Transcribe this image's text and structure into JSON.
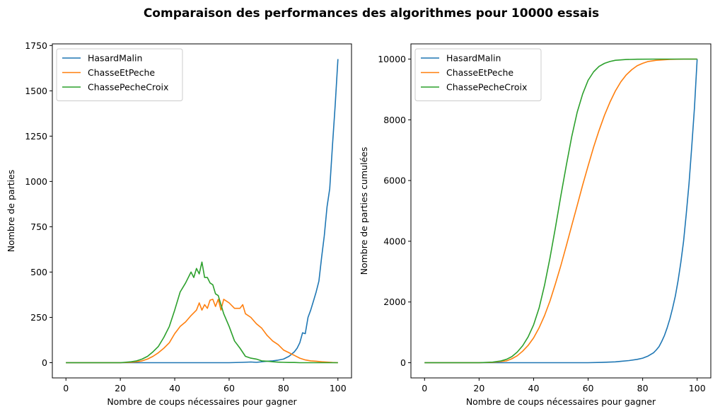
{
  "figure": {
    "title": "Comparaison des performances des algorithmes pour 10000 essais"
  },
  "colors": {
    "HasardMalin": "#1f77b4",
    "ChasseEtPeche": "#ff7f0e",
    "ChassePecheCroix": "#2ca02c"
  },
  "chart_data": [
    {
      "type": "line",
      "title": "",
      "xlabel": "Nombre de coups nécessaires pour gagner",
      "ylabel": "Nombre de parties",
      "xlim": [
        -5,
        105
      ],
      "ylim": [
        -84,
        1759
      ],
      "xticks": [
        0,
        20,
        40,
        60,
        80,
        100
      ],
      "yticks": [
        0,
        250,
        500,
        750,
        1000,
        1250,
        1500,
        1750
      ],
      "legend": "top-left",
      "grid": false,
      "series": [
        {
          "name": "HasardMalin",
          "x": [
            0,
            10,
            20,
            30,
            40,
            50,
            60,
            65,
            68,
            70,
            72,
            74,
            76,
            78,
            80,
            82,
            84,
            85,
            86,
            87,
            88,
            89,
            90,
            91,
            92,
            93,
            94,
            95,
            96,
            97,
            98,
            99,
            100
          ],
          "y": [
            0,
            0,
            0,
            0,
            0,
            0,
            0,
            2,
            4,
            2,
            5,
            8,
            10,
            14,
            20,
            35,
            60,
            80,
            110,
            165,
            160,
            250,
            290,
            340,
            390,
            450,
            580,
            700,
            860,
            960,
            1200,
            1420,
            1675
          ]
        },
        {
          "name": "ChasseEtPeche",
          "x": [
            0,
            10,
            20,
            24,
            26,
            28,
            30,
            32,
            34,
            36,
            38,
            40,
            42,
            44,
            46,
            48,
            49,
            50,
            51,
            52,
            53,
            54,
            55,
            56,
            57,
            58,
            60,
            62,
            64,
            65,
            66,
            68,
            70,
            72,
            74,
            76,
            78,
            80,
            82,
            84,
            86,
            88,
            90,
            92,
            94,
            96,
            98,
            100
          ],
          "y": [
            0,
            0,
            0,
            2,
            5,
            10,
            20,
            35,
            55,
            80,
            110,
            160,
            200,
            225,
            260,
            290,
            330,
            290,
            320,
            300,
            345,
            350,
            310,
            350,
            290,
            350,
            330,
            300,
            300,
            320,
            270,
            250,
            215,
            190,
            150,
            120,
            100,
            70,
            55,
            40,
            25,
            15,
            10,
            8,
            5,
            3,
            1,
            0
          ]
        },
        {
          "name": "ChassePecheCroix",
          "x": [
            0,
            10,
            20,
            24,
            26,
            28,
            30,
            32,
            34,
            36,
            38,
            40,
            42,
            44,
            46,
            47,
            48,
            49,
            50,
            51,
            52,
            53,
            54,
            55,
            56,
            57,
            58,
            60,
            62,
            64,
            66,
            68,
            70,
            72,
            74,
            76,
            78,
            80,
            82,
            84,
            86,
            90,
            95,
            100
          ],
          "y": [
            0,
            0,
            0,
            5,
            10,
            20,
            35,
            60,
            90,
            140,
            200,
            290,
            390,
            440,
            500,
            470,
            520,
            490,
            555,
            470,
            470,
            440,
            430,
            380,
            370,
            320,
            270,
            200,
            120,
            80,
            35,
            25,
            20,
            10,
            8,
            5,
            3,
            2,
            1,
            1,
            0,
            0,
            0,
            0
          ]
        }
      ]
    },
    {
      "type": "line",
      "title": "",
      "xlabel": "Nombre de coups nécessaires pour gagner",
      "ylabel": "Nombre de parties cumulées",
      "xlim": [
        -5,
        105
      ],
      "ylim": [
        -500,
        10500
      ],
      "xticks": [
        0,
        20,
        40,
        60,
        80,
        100
      ],
      "yticks": [
        0,
        2000,
        4000,
        6000,
        8000,
        10000
      ],
      "legend": "top-left",
      "grid": false,
      "series": [
        {
          "name": "HasardMalin",
          "x": [
            0,
            20,
            40,
            60,
            65,
            70,
            72,
            75,
            78,
            80,
            82,
            84,
            85,
            86,
            87,
            88,
            89,
            90,
            91,
            92,
            93,
            94,
            95,
            96,
            97,
            98,
            99,
            100
          ],
          "y": [
            0,
            0,
            0,
            0,
            10,
            30,
            45,
            70,
            110,
            150,
            220,
            330,
            420,
            530,
            700,
            900,
            1150,
            1450,
            1800,
            2200,
            2700,
            3300,
            4000,
            4900,
            5900,
            7100,
            8400,
            10000
          ]
        },
        {
          "name": "ChasseEtPeche",
          "x": [
            0,
            20,
            25,
            30,
            32,
            34,
            36,
            38,
            40,
            42,
            44,
            46,
            48,
            50,
            52,
            54,
            56,
            58,
            60,
            62,
            64,
            66,
            68,
            70,
            72,
            74,
            76,
            78,
            80,
            82,
            85,
            90,
            95,
            100
          ],
          "y": [
            0,
            0,
            10,
            60,
            130,
            230,
            380,
            570,
            820,
            1150,
            1550,
            2030,
            2600,
            3200,
            3850,
            4520,
            5180,
            5850,
            6480,
            7100,
            7650,
            8150,
            8580,
            8950,
            9250,
            9480,
            9650,
            9780,
            9860,
            9920,
            9960,
            9990,
            10000,
            10000
          ]
        },
        {
          "name": "ChassePecheCroix",
          "x": [
            0,
            20,
            25,
            28,
            30,
            32,
            34,
            36,
            38,
            40,
            42,
            44,
            46,
            48,
            50,
            52,
            54,
            56,
            58,
            60,
            62,
            64,
            66,
            68,
            70,
            74,
            78,
            85,
            100
          ],
          "y": [
            0,
            0,
            20,
            60,
            110,
            200,
            350,
            560,
            850,
            1250,
            1800,
            2550,
            3450,
            4450,
            5500,
            6500,
            7450,
            8250,
            8850,
            9300,
            9580,
            9760,
            9860,
            9920,
            9960,
            9985,
            9995,
            10000,
            10000
          ]
        }
      ]
    }
  ]
}
